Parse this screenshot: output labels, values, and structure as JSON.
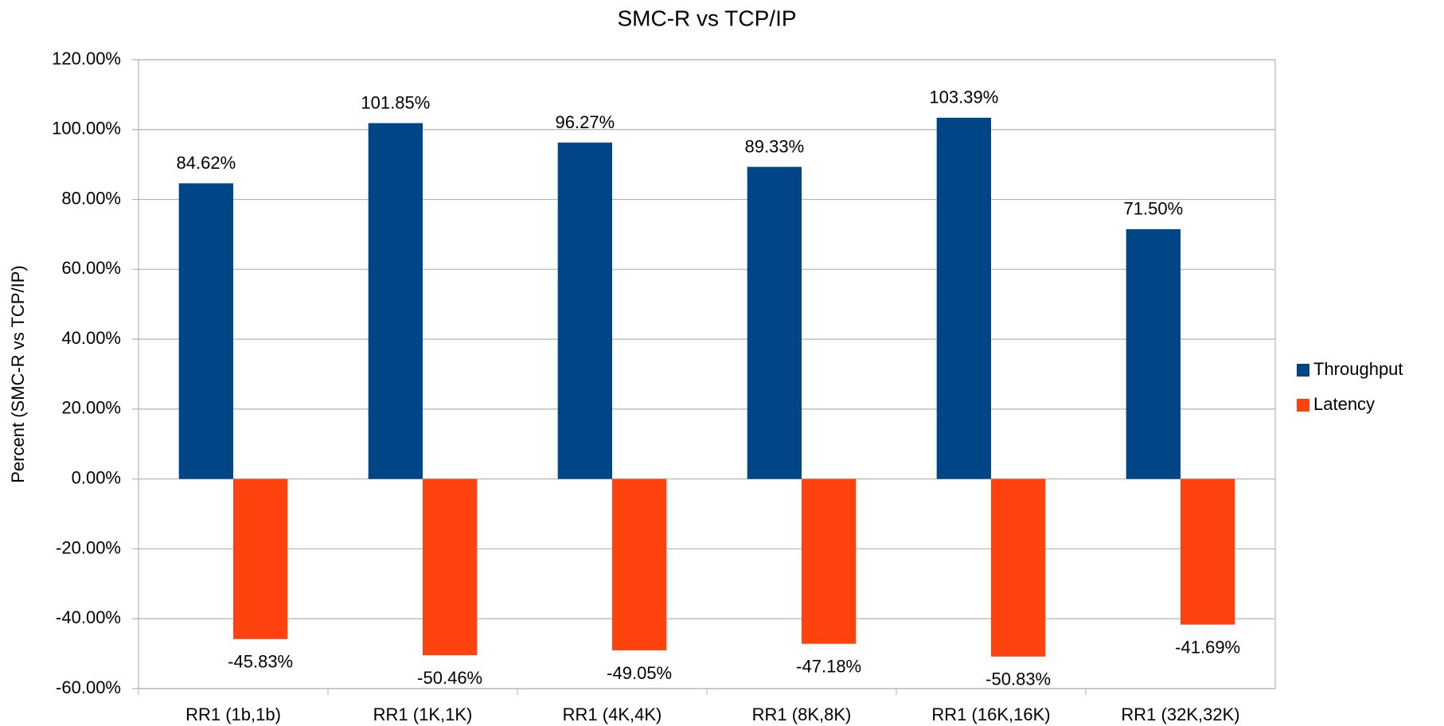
{
  "chart_data": {
    "type": "bar",
    "title": "SMC-R vs TCP/IP",
    "y_label": "Percent (SMC-R vs TCP/IP)",
    "categories": [
      "RR1 (1b,1b)",
      "RR1 (1K,1K)",
      "RR1 (4K,4K)",
      "RR1 (8K,8K)",
      "RR1 (16K,16K)",
      "RR1 (32K,32K)"
    ],
    "series": [
      {
        "name": "Throughput",
        "color": "#004586",
        "values": [
          84.62,
          101.85,
          96.27,
          89.33,
          103.39,
          71.5
        ],
        "value_labels": [
          "84.62%",
          "101.85%",
          "96.27%",
          "89.33%",
          "103.39%",
          "71.50%"
        ]
      },
      {
        "name": "Latency",
        "color": "#ff420e",
        "values": [
          -45.83,
          -50.46,
          -49.05,
          -47.18,
          -50.83,
          -41.69
        ],
        "value_labels": [
          "-45.83%",
          "-50.46%",
          "-49.05%",
          "-47.18%",
          "-50.83%",
          "-41.69%"
        ]
      }
    ],
    "ylim": [
      -60,
      120
    ],
    "yticks": [
      {
        "value": -60,
        "label": "-60.00%"
      },
      {
        "value": -40,
        "label": "-40.00%"
      },
      {
        "value": -20,
        "label": "-20.00%"
      },
      {
        "value": 0,
        "label": "0.00%"
      },
      {
        "value": 20,
        "label": "20.00%"
      },
      {
        "value": 40,
        "label": "40.00%"
      },
      {
        "value": 60,
        "label": "60.00%"
      },
      {
        "value": 80,
        "label": "80.00%"
      },
      {
        "value": 100,
        "label": "100.00%"
      },
      {
        "value": 120,
        "label": "120.00%"
      }
    ],
    "grid": true,
    "legend": "right"
  }
}
